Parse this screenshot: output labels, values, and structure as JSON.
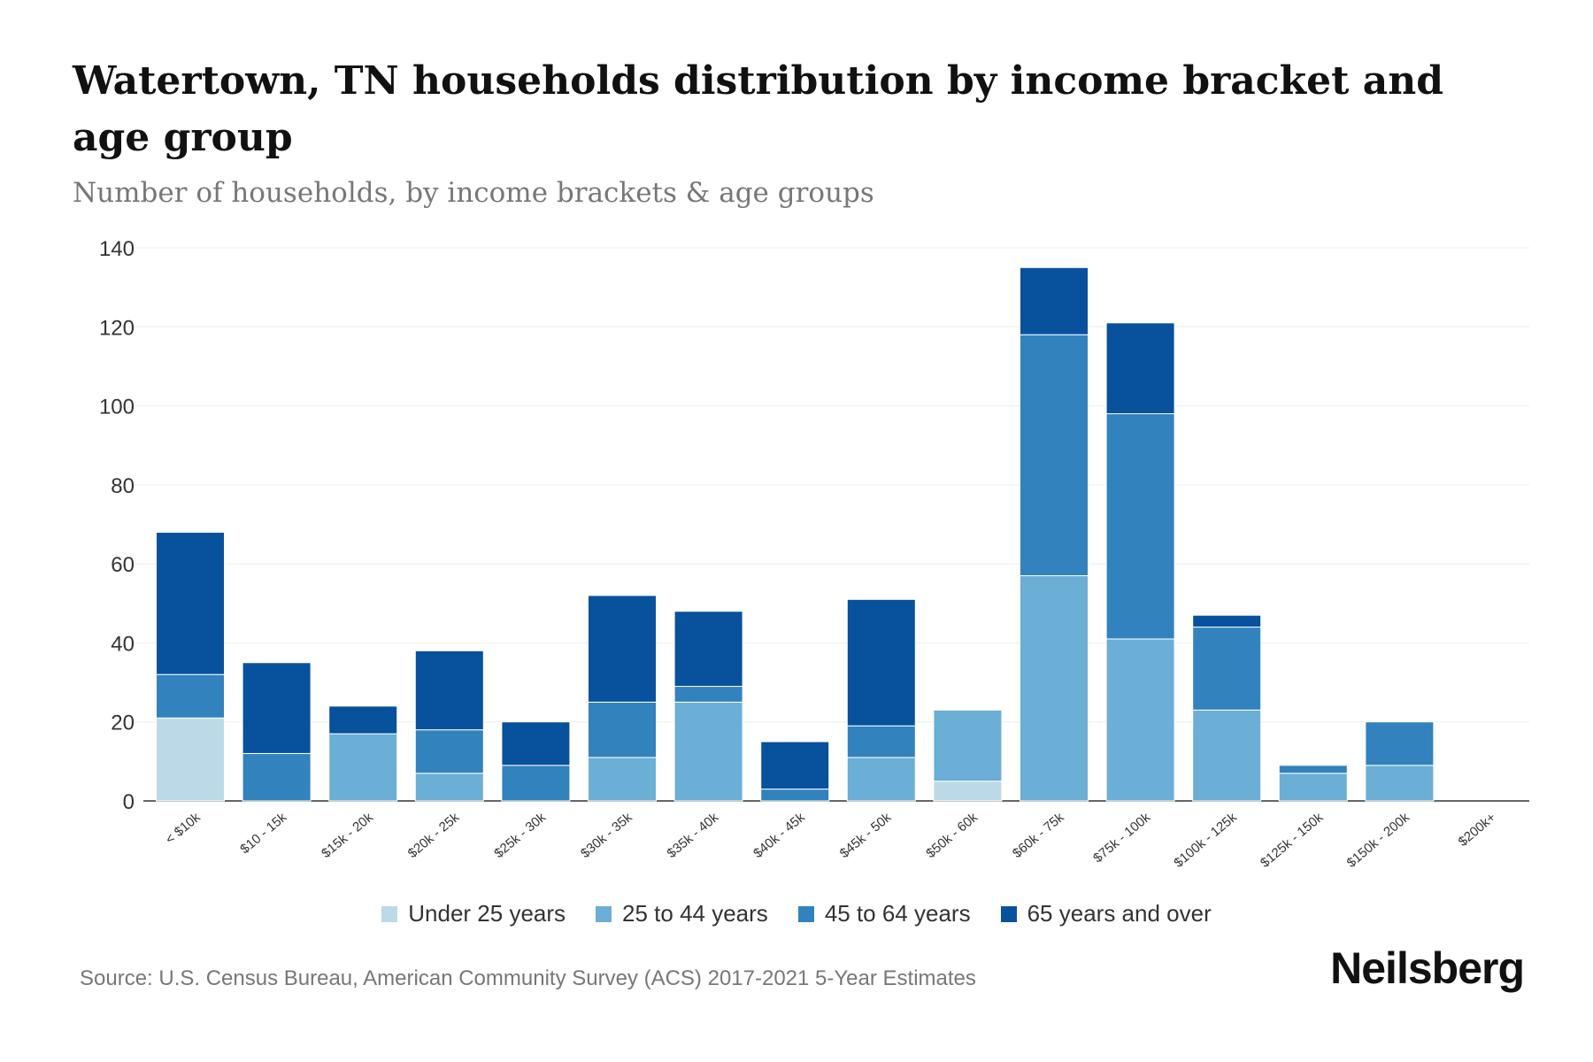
{
  "title": "Watertown, TN households distribution by income bracket and age group",
  "subtitle": "Number of households, by income brackets & age groups",
  "source": "Source: U.S. Census Bureau, American Community Survey (ACS) 2017-2021 5-Year Estimates",
  "logo": "Neilsberg",
  "chart_data": {
    "type": "bar",
    "stacked": true,
    "title": "Watertown, TN households distribution by income bracket and age group",
    "xlabel": "",
    "ylabel": "Number of households",
    "ylim": [
      0,
      140
    ],
    "yticks": [
      0,
      20,
      40,
      60,
      80,
      100,
      120,
      140
    ],
    "grid": true,
    "legend_position": "bottom",
    "categories": [
      "< $10k",
      "$10 - 15k",
      "$15k - 20k",
      "$20k - 25k",
      "$25k - 30k",
      "$30k - 35k",
      "$35k - 40k",
      "$40k - 45k",
      "$45k - 50k",
      "$50k - 60k",
      "$60k - 75k",
      "$75k - 100k",
      "$100k - 125k",
      "$125k - 150k",
      "$150k - 200k",
      "$200k+"
    ],
    "series": [
      {
        "name": "Under 25 years",
        "color": "#bcd9e8",
        "values": [
          21,
          0,
          0,
          0,
          0,
          0,
          0,
          0,
          0,
          5,
          0,
          0,
          0,
          0,
          0,
          0
        ]
      },
      {
        "name": "25 to 44 years",
        "color": "#6baed6",
        "values": [
          0,
          0,
          17,
          7,
          0,
          11,
          25,
          0,
          11,
          18,
          57,
          41,
          23,
          7,
          9,
          0
        ]
      },
      {
        "name": "45 to 64 years",
        "color": "#3182bd",
        "values": [
          11,
          12,
          0,
          11,
          9,
          14,
          4,
          3,
          8,
          0,
          61,
          57,
          21,
          2,
          11,
          0
        ]
      },
      {
        "name": "65 years and over",
        "color": "#08519c",
        "values": [
          36,
          23,
          7,
          20,
          11,
          27,
          19,
          12,
          32,
          0,
          17,
          23,
          3,
          0,
          0,
          0
        ]
      }
    ]
  }
}
